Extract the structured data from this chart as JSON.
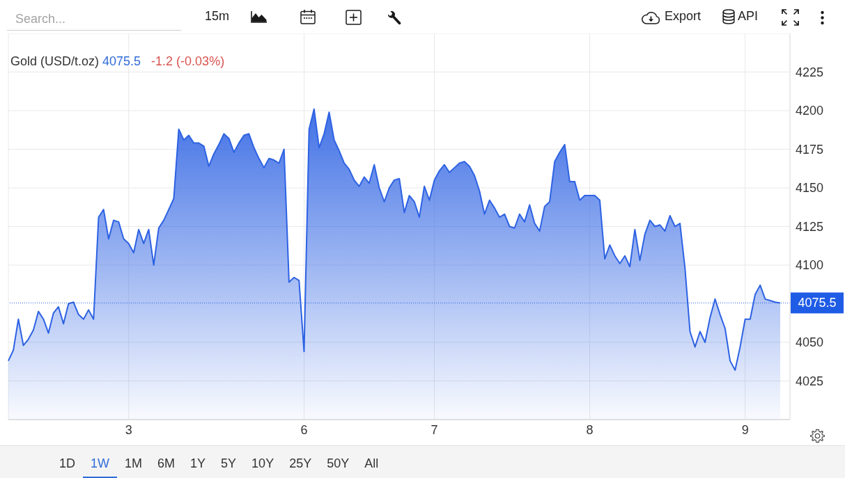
{
  "chart_data": {
    "type": "area",
    "title": "Gold (USD/t.oz)",
    "annotations": [
      "4075.5",
      "-1.2 (-0.03%)",
      "Search...",
      "15m",
      "Export",
      "API",
      "1D",
      "1W",
      "1M",
      "6M",
      "1Y",
      "5Y",
      "10Y",
      "25Y",
      "50Y",
      "All"
    ],
    "categories": [
      null,
      null,
      null,
      null,
      null,
      null,
      null,
      null,
      null,
      null,
      null,
      null,
      null,
      null,
      null,
      null,
      null,
      null,
      null,
      null,
      null,
      null,
      null,
      null,
      "3",
      null,
      null,
      null,
      null,
      null,
      null,
      null,
      null,
      null,
      null,
      null,
      null,
      null,
      null,
      null,
      null,
      null,
      null,
      null,
      null,
      null,
      null,
      null,
      null,
      null,
      null,
      null,
      null,
      null,
      null,
      null,
      null,
      null,
      null,
      "6",
      null,
      null,
      null,
      null,
      null,
      null,
      null,
      null,
      null,
      null,
      null,
      null,
      null,
      null,
      null,
      null,
      null,
      null,
      null,
      null,
      null,
      null,
      null,
      null,
      null,
      "7",
      null,
      null,
      null,
      null,
      null,
      null,
      null,
      null,
      null,
      null,
      null,
      null,
      null,
      null,
      null,
      null,
      null,
      null,
      null,
      null,
      null,
      null,
      null,
      null,
      null,
      null,
      null,
      null,
      null,
      null,
      "8",
      null,
      null,
      null,
      null,
      null,
      null,
      null,
      null,
      null,
      null,
      null,
      null,
      null,
      null,
      null,
      null,
      null,
      null,
      null,
      null,
      null,
      null,
      null,
      null,
      null,
      null,
      null,
      null,
      null,
      null,
      "9",
      null,
      null,
      null,
      null,
      null,
      null,
      null
    ],
    "values": [
      4038,
      4045,
      4065,
      4048,
      4052,
      4058,
      4070,
      4065,
      4056,
      4069,
      4073,
      4062,
      4075,
      4076,
      4068,
      4065,
      4071,
      4065,
      4131,
      4136,
      4117,
      4129,
      4128,
      4117,
      4114,
      4108,
      4123,
      4114,
      4123,
      4100,
      4124,
      4129,
      4136,
      4143,
      4188,
      4181,
      4184,
      4179,
      4179,
      4177,
      4164,
      4172,
      4178,
      4185,
      4182,
      4173,
      4179,
      4184,
      4185,
      4176,
      4169,
      4163,
      4169,
      4168,
      4166,
      4175,
      4089,
      4092,
      4090,
      4044,
      4188,
      4201,
      4176,
      4185,
      4199,
      4181,
      4174,
      4166,
      4162,
      4155,
      4151,
      4157,
      4153,
      4165,
      4150,
      4141,
      4150,
      4155,
      4156,
      4134,
      4145,
      4141,
      4131,
      4151,
      4142,
      4155,
      4161,
      4165,
      4160,
      4163,
      4166,
      4167,
      4164,
      4158,
      4148,
      4133,
      4142,
      4137,
      4131,
      4133,
      4125,
      4124,
      4133,
      4128,
      4139,
      4127,
      4122,
      4138,
      4141,
      4167,
      4173,
      4178,
      4154,
      4154,
      4142,
      4145,
      4145,
      4145,
      4142,
      4104,
      4113,
      4106,
      4101,
      4106,
      4099,
      4123,
      4103,
      4120,
      4129,
      4125,
      4126,
      4122,
      4132,
      4125,
      4127,
      4098,
      4057,
      4047,
      4057,
      4050,
      4066,
      4078,
      4068,
      4059,
      4038,
      4032,
      4047,
      4065,
      4065,
      4081,
      4087,
      4078,
      4077,
      4076,
      4075.5
    ],
    "color": "#2d62e3",
    "ylim": [
      4000,
      4250
    ],
    "yticks": [
      4025,
      4050,
      4100,
      4125,
      4150,
      4175,
      4200,
      4225
    ],
    "grid": true,
    "ref_lines": [
      {
        "axis": "y",
        "value": 4075.5,
        "label": "4075.5",
        "color": "#1f5ce6",
        "line_style": "dotted"
      }
    ]
  }
}
